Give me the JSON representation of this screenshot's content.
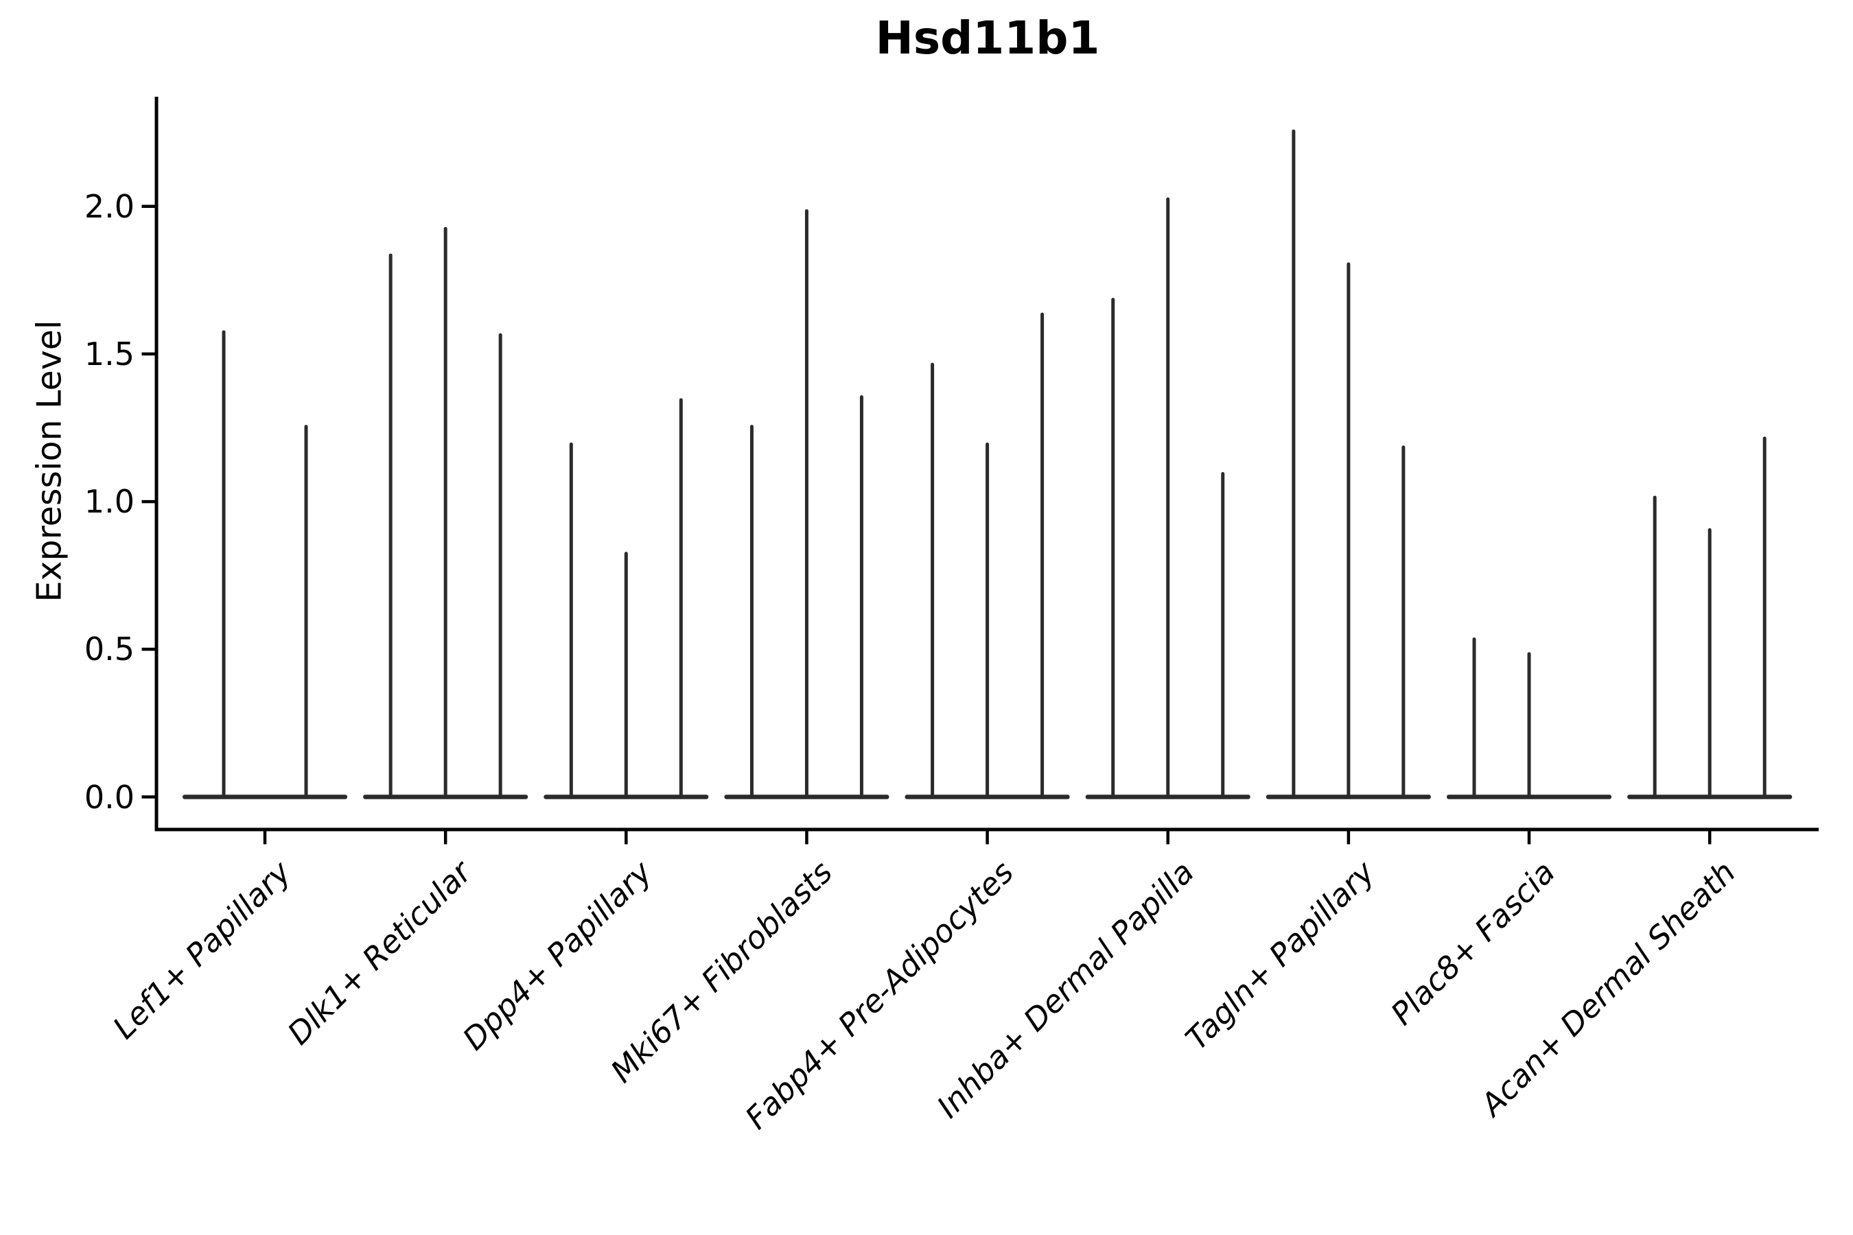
{
  "figure": {
    "title": "Hsd11b1",
    "ylabel": "Expression Level",
    "colors": {
      "violin": "#2b2b2b",
      "axis": "#000000",
      "text": "#000000"
    }
  },
  "chart_data": {
    "type": "violin",
    "title": "Hsd11b1",
    "xlabel": "",
    "ylabel": "Expression Level",
    "ylim": [
      -0.11,
      2.37
    ],
    "grid": false,
    "legend": "none",
    "yticks": [
      {
        "label": "0.0",
        "value": 0.0
      },
      {
        "label": "0.5",
        "value": 0.5
      },
      {
        "label": "1.0",
        "value": 1.0
      },
      {
        "label": "1.5",
        "value": 1.5
      },
      {
        "label": "2.0",
        "value": 2.0
      }
    ],
    "categories": [
      "Lef1+ Papillary",
      "Dlk1+ Reticular",
      "Dpp4+ Papillary",
      "Mki67+ Fibroblasts",
      "Fabp4+ Pre-Adipocytes",
      "Inhba+ Dermal Papilla",
      "Tagln+ Papillary",
      "Plac8+ Fascia",
      "Acan+ Dermal Sheath"
    ],
    "groups": [
      {
        "category": "Lef1+ Papillary",
        "violin_max": [
          1.58,
          1.26
        ]
      },
      {
        "category": "Dlk1+ Reticular",
        "violin_max": [
          1.84,
          1.93,
          1.57
        ]
      },
      {
        "category": "Dpp4+ Papillary",
        "violin_max": [
          1.2,
          0.83,
          1.35
        ]
      },
      {
        "category": "Mki67+ Fibroblasts",
        "violin_max": [
          1.26,
          1.99,
          1.36
        ]
      },
      {
        "category": "Fabp4+ Pre-Adipocytes",
        "violin_max": [
          1.47,
          1.2,
          1.64
        ]
      },
      {
        "category": "Inhba+ Dermal Papilla",
        "violin_max": [
          1.69,
          2.03,
          1.1
        ]
      },
      {
        "category": "Tagln+ Papillary",
        "violin_max": [
          2.26,
          1.81,
          1.19
        ]
      },
      {
        "category": "Plac8+ Fascia",
        "violin_max": [
          0.54,
          0.49,
          0.0
        ]
      },
      {
        "category": "Acan+ Dermal Sheath",
        "violin_max": [
          1.02,
          0.91,
          1.22
        ]
      }
    ],
    "note": "Each category shows thin violins (expression mostly 0); violin_max is the top of each spike in Expression Level units. 0.0 entries are flat violins with no spike."
  }
}
